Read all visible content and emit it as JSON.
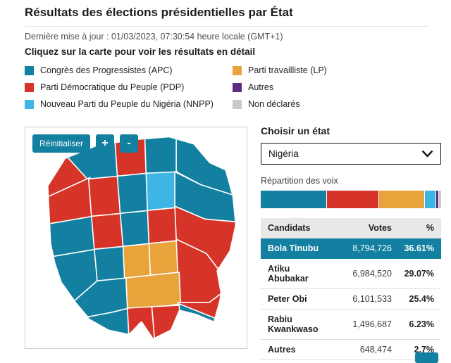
{
  "page": {
    "title": "Résultats des élections présidentielles par État",
    "updated": "Dernière mise à jour : 01/03/2023, 07:30:54 heure locale (GMT+1)",
    "instruction": "Cliquez sur la carte pour voir les résultats en détail"
  },
  "colors": {
    "accent": "#1380A1",
    "apc": "#1380A1",
    "pdp": "#D63429",
    "nnpp": "#3EB5E5",
    "lp": "#E8A33B",
    "autres": "#5E2A84",
    "non_declares": "#C9C9C9"
  },
  "legend": {
    "items": [
      {
        "label": "Congrès des Progressistes (APC)",
        "party": "apc"
      },
      {
        "label": "Parti Démocratique du Peuple (PDP)",
        "party": "pdp"
      },
      {
        "label": "Nouveau Parti du Peuple du Nigéria (NNPP)",
        "party": "nnpp"
      },
      {
        "label": "Parti travailliste (LP)",
        "party": "lp"
      },
      {
        "label": "Autres",
        "party": "autres"
      },
      {
        "label": "Non déclarés",
        "party": "non_declares"
      }
    ]
  },
  "map": {
    "reset_label": "Réinitialiser",
    "zoom_in_label": "+",
    "zoom_out_label": "-"
  },
  "panel": {
    "choose_label": "Choisir un état",
    "selected_state": "Nigéria",
    "share_label": "Répartition des voix"
  },
  "chart_data": {
    "type": "bar",
    "variant": "stacked-horizontal",
    "title": "Répartition des voix",
    "xlim": [
      0,
      100
    ],
    "segments": [
      {
        "party": "apc",
        "name": "Bola Tinubu",
        "pct": 36.61
      },
      {
        "party": "pdp",
        "name": "Atiku Abubakar",
        "pct": 29.07
      },
      {
        "party": "lp",
        "name": "Peter Obi",
        "pct": 25.4
      },
      {
        "party": "nnpp",
        "name": "Rabiu Kwankwaso",
        "pct": 6.23
      },
      {
        "party": "autres",
        "name": "Autres",
        "pct": 1.5
      },
      {
        "party": "non_declares",
        "name": "Non déclarés",
        "pct": 1.2
      }
    ]
  },
  "table": {
    "headers": {
      "candidate": "Candidats",
      "votes": "Votes",
      "pct": "%"
    },
    "rows": [
      {
        "candidate": "Bola Tinubu",
        "votes": "8,794,726",
        "pct": "36.61%",
        "highlight": true
      },
      {
        "candidate": "Atiku Abubakar",
        "votes": "6,984,520",
        "pct": "29.07%",
        "highlight": false
      },
      {
        "candidate": "Peter Obi",
        "votes": "6,101,533",
        "pct": "25.4%",
        "highlight": false
      },
      {
        "candidate": "Rabiu Kwankwaso",
        "votes": "1,496,687",
        "pct": "6.23%",
        "highlight": false
      },
      {
        "candidate": "Autres",
        "votes": "648,474",
        "pct": "2.7%",
        "highlight": false
      }
    ]
  }
}
